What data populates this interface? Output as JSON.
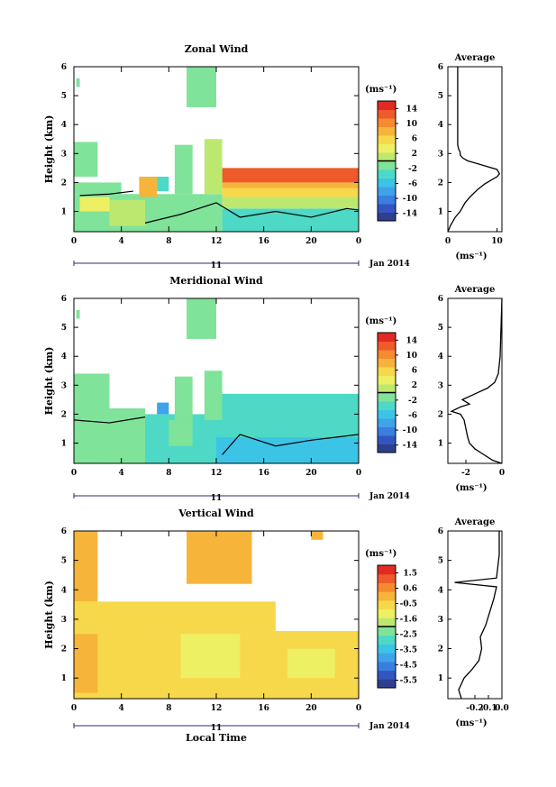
{
  "figure": {
    "xaxis_day": "11",
    "xaxis_month": "Jan 2014",
    "xlabel_bottom": "Local Time"
  },
  "chart_data": [
    {
      "type": "heatmap",
      "title": "Zonal Wind",
      "ylabel": "Height (km)",
      "xlim": [
        0,
        24
      ],
      "ylim": [
        0.3,
        6
      ],
      "xticks": [
        "0",
        "4",
        "8",
        "12",
        "16",
        "20",
        "0"
      ],
      "yticks": [
        "1",
        "2",
        "3",
        "4",
        "5",
        "6"
      ],
      "colorbar": {
        "unit": "(ms⁻¹)",
        "ticks": [
          "14",
          "10",
          "6",
          "2",
          "-2",
          "-6",
          "-10",
          "-14"
        ],
        "range": [
          -16,
          16
        ]
      },
      "regions": [
        {
          "t0": 0,
          "t1": 12.5,
          "h0": 0.3,
          "h1": 1.6,
          "v": -2
        },
        {
          "t0": 0.5,
          "t1": 3,
          "h0": 1,
          "h1": 1.5,
          "v": 3
        },
        {
          "t0": 3,
          "t1": 6,
          "h0": 0.5,
          "h1": 1.4,
          "v": 1
        },
        {
          "t0": 12.5,
          "t1": 24,
          "h0": 0.3,
          "h1": 1.1,
          "v": -3
        },
        {
          "t0": 12.5,
          "t1": 24,
          "h0": 1.1,
          "h1": 1.5,
          "v": 2
        },
        {
          "t0": 12.5,
          "t1": 24,
          "h0": 1.5,
          "h1": 1.8,
          "v": 6
        },
        {
          "t0": 12.5,
          "t1": 24,
          "h0": 1.8,
          "h1": 2,
          "v": 9
        },
        {
          "t0": 12.5,
          "t1": 24,
          "h0": 2,
          "h1": 2.5,
          "v": 13
        },
        {
          "t0": 5.5,
          "t1": 7,
          "h0": 1.5,
          "h1": 2.2,
          "v": 7
        },
        {
          "t0": 0,
          "t1": 4,
          "h0": 1.6,
          "h1": 2,
          "v": -1
        },
        {
          "t0": 0,
          "t1": 2,
          "h0": 2.2,
          "h1": 3.4,
          "v": -1
        },
        {
          "t0": 8.5,
          "t1": 10,
          "h0": 1.6,
          "h1": 3.3,
          "v": -1
        },
        {
          "t0": 11,
          "t1": 12.5,
          "h0": 1.6,
          "h1": 3.5,
          "v": 0
        },
        {
          "t0": 9.5,
          "t1": 12,
          "h0": 4.6,
          "h1": 6,
          "v": -1
        },
        {
          "t0": 7,
          "t1": 8,
          "h0": 1.7,
          "h1": 2.2,
          "v": -3
        },
        {
          "t0": 0.2,
          "t1": 0.5,
          "h0": 5.3,
          "h1": 5.6,
          "v": -1
        }
      ],
      "contours": [
        [
          [
            0.5,
            1.55
          ],
          [
            3,
            1.6
          ],
          [
            5,
            1.7
          ]
        ],
        [
          [
            6,
            0.6
          ],
          [
            9,
            0.9
          ],
          [
            12,
            1.3
          ],
          [
            14,
            0.8
          ],
          [
            17,
            1
          ],
          [
            20,
            0.8
          ],
          [
            23,
            1.1
          ],
          [
            24,
            1.05
          ]
        ]
      ]
    },
    {
      "type": "line",
      "title": "Average",
      "xlabel": "(ms⁻¹)",
      "xlim": [
        0,
        11
      ],
      "ylim": [
        0.3,
        6
      ],
      "xticks": [
        "0",
        "10"
      ],
      "yticks": [
        "1",
        "2",
        "3",
        "4",
        "5",
        "6"
      ],
      "x": [
        0,
        0.5,
        1.5,
        2.5,
        3.5,
        4.5,
        6,
        7.5,
        9,
        10,
        10.5,
        10,
        8,
        6,
        4,
        3,
        2.5,
        2.5,
        2.2,
        2,
        2,
        2
      ],
      "y": [
        0.3,
        0.5,
        0.8,
        1,
        1.3,
        1.5,
        1.75,
        1.95,
        2.1,
        2.2,
        2.3,
        2.45,
        2.55,
        2.65,
        2.75,
        2.85,
        2.95,
        3.05,
        3.15,
        3.3,
        4,
        6
      ]
    },
    {
      "type": "heatmap",
      "title": "Meridional Wind",
      "ylabel": "Height (km)",
      "xlim": [
        0,
        24
      ],
      "ylim": [
        0.3,
        6
      ],
      "xticks": [
        "0",
        "4",
        "8",
        "12",
        "16",
        "20",
        "0"
      ],
      "yticks": [
        "1",
        "2",
        "3",
        "4",
        "5",
        "6"
      ],
      "colorbar": {
        "unit": "(ms⁻¹)",
        "ticks": [
          "14",
          "10",
          "6",
          "2",
          "-2",
          "-6",
          "-10",
          "-14"
        ],
        "range": [
          -16,
          16
        ]
      },
      "regions": [
        {
          "t0": 0,
          "t1": 6,
          "h0": 0.3,
          "h1": 1.8,
          "v": -1
        },
        {
          "t0": 2,
          "t1": 6,
          "h0": 0.4,
          "h1": 1,
          "v": -2
        },
        {
          "t0": 6,
          "t1": 12,
          "h0": 0.3,
          "h1": 2,
          "v": -4
        },
        {
          "t0": 8,
          "t1": 10,
          "h0": 0.9,
          "h1": 1.8,
          "v": -1
        },
        {
          "t0": 12,
          "t1": 24,
          "h0": 0.3,
          "h1": 2.7,
          "v": -5
        },
        {
          "t0": 12,
          "t1": 24,
          "h0": 1.2,
          "h1": 2.7,
          "v": -3
        },
        {
          "t0": 7,
          "t1": 8,
          "h0": 2,
          "h1": 2.4,
          "v": -9
        },
        {
          "t0": 0,
          "t1": 3,
          "h0": 1.8,
          "h1": 3.4,
          "v": -1
        },
        {
          "t0": 3,
          "t1": 6,
          "h0": 1.8,
          "h1": 2.2,
          "v": -1
        },
        {
          "t0": 8.5,
          "t1": 10,
          "h0": 1.8,
          "h1": 3.3,
          "v": -1
        },
        {
          "t0": 11,
          "t1": 12.5,
          "h0": 1.8,
          "h1": 3.5,
          "v": -1
        },
        {
          "t0": 9.5,
          "t1": 12,
          "h0": 4.6,
          "h1": 6,
          "v": -1
        },
        {
          "t0": 0.2,
          "t1": 0.5,
          "h0": 5.3,
          "h1": 5.6,
          "v": -1
        }
      ],
      "contours": [
        [
          [
            0,
            1.8
          ],
          [
            3,
            1.7
          ],
          [
            6,
            1.9
          ]
        ],
        [
          [
            12.5,
            0.6
          ],
          [
            14,
            1.3
          ],
          [
            17,
            0.9
          ],
          [
            20,
            1.1
          ],
          [
            22,
            1.2
          ],
          [
            24,
            1.3
          ]
        ]
      ]
    },
    {
      "type": "line",
      "title": "Average",
      "xlabel": "(ms⁻¹)",
      "xlim": [
        -3,
        0
      ],
      "ylim": [
        0.3,
        6
      ],
      "xticks": [
        "-2",
        "0"
      ],
      "yticks": [
        "1",
        "2",
        "3",
        "4",
        "5",
        "6"
      ],
      "x": [
        0,
        -0.5,
        -1,
        -1.5,
        -1.8,
        -1.9,
        -2,
        -2.1,
        -2.3,
        -2.8,
        -2.3,
        -1.8,
        -2.2,
        -1.5,
        -0.8,
        -0.4,
        -0.2,
        -0.1,
        -0.05,
        0
      ],
      "y": [
        0.3,
        0.4,
        0.6,
        0.8,
        1,
        1.2,
        1.5,
        1.8,
        2,
        2.1,
        2.25,
        2.35,
        2.5,
        2.7,
        2.9,
        3.1,
        3.4,
        4,
        5,
        6
      ]
    },
    {
      "type": "heatmap",
      "title": "Vertical Wind",
      "ylabel": "Height (km)",
      "xlim": [
        0,
        24
      ],
      "ylim": [
        0.3,
        6
      ],
      "xticks": [
        "0",
        "4",
        "8",
        "12",
        "16",
        "20",
        "0"
      ],
      "yticks": [
        "1",
        "2",
        "3",
        "4",
        "5",
        "6"
      ],
      "colorbar": {
        "unit": "(ms⁻¹)",
        "ticks": [
          "1.5",
          "0.6",
          "-0.5",
          "-1.6",
          "-2.5",
          "-3.5",
          "-4.5",
          "-5.5"
        ],
        "range": [
          -6,
          2
        ]
      },
      "regions": [
        {
          "t0": 0,
          "t1": 24,
          "h0": 0.3,
          "h1": 2.6,
          "v": -0.3
        },
        {
          "t0": 0,
          "t1": 17,
          "h0": 2.6,
          "h1": 3.6,
          "v": -0.3
        },
        {
          "t0": 0,
          "t1": 2,
          "h0": 0.5,
          "h1": 2.5,
          "v": 0.2
        },
        {
          "t0": 9,
          "t1": 14,
          "h0": 1,
          "h1": 2.5,
          "v": -0.9
        },
        {
          "t0": 4,
          "t1": 6,
          "h0": 1.5,
          "h1": 2.8,
          "v": -0.7
        },
        {
          "t0": 18,
          "t1": 22,
          "h0": 1,
          "h1": 2,
          "v": -0.9
        },
        {
          "t0": 0,
          "t1": 2,
          "h0": 3.6,
          "h1": 6,
          "v": 0
        },
        {
          "t0": 9.5,
          "t1": 15,
          "h0": 4.2,
          "h1": 6,
          "v": 0
        },
        {
          "t0": 20,
          "t1": 21,
          "h0": 5.7,
          "h1": 6,
          "v": 0
        }
      ],
      "contours": []
    },
    {
      "type": "line",
      "title": "Average",
      "xlabel": "(ms⁻¹)",
      "xlim": [
        -0.4,
        0
      ],
      "ylim": [
        0.3,
        6
      ],
      "xticks": [
        "-0.2",
        "-0.1",
        "0.0"
      ],
      "yticks": [
        "1",
        "2",
        "3",
        "4",
        "5",
        "6"
      ],
      "x": [
        -0.3,
        -0.32,
        -0.28,
        -0.22,
        -0.17,
        -0.15,
        -0.16,
        -0.12,
        -0.1,
        -0.08,
        -0.06,
        -0.05,
        -0.04,
        -0.35,
        -0.04,
        -0.03,
        -0.02,
        -0.02,
        -0.02
      ],
      "y": [
        0.3,
        0.6,
        1,
        1.3,
        1.6,
        2,
        2.4,
        2.8,
        3.1,
        3.4,
        3.7,
        3.9,
        4.1,
        4.25,
        4.4,
        4.8,
        5.2,
        5.6,
        6
      ]
    }
  ]
}
